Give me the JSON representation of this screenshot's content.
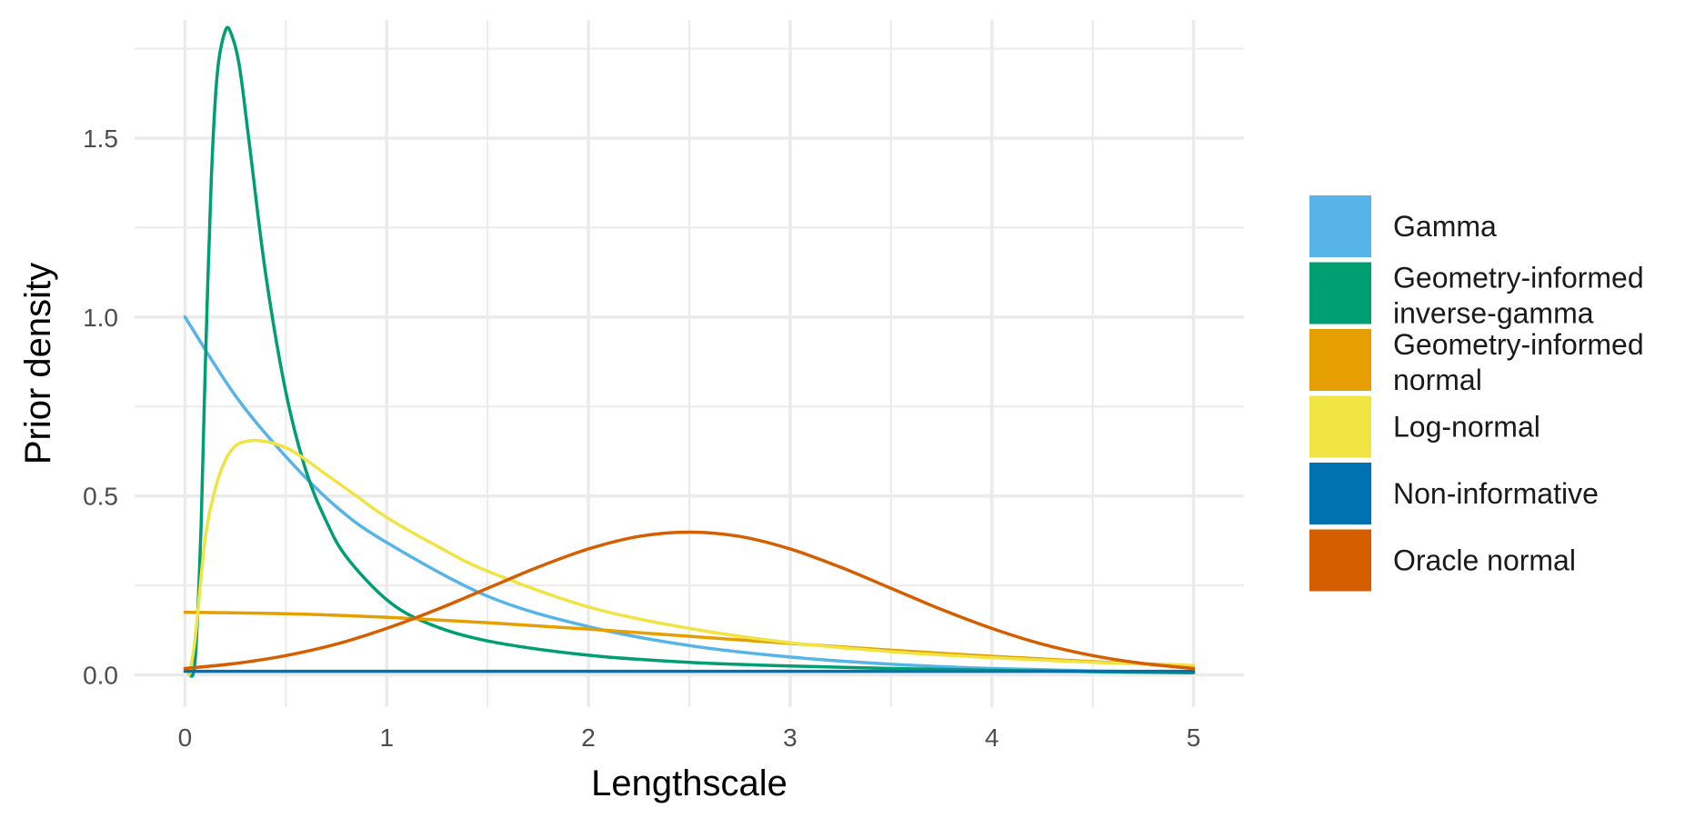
{
  "chart_data": {
    "type": "line",
    "xlabel": "Lengthscale",
    "ylabel": "Prior density",
    "xlim": [
      -0.25,
      5.25
    ],
    "ylim": [
      -0.09,
      1.83
    ],
    "xticks": [
      0,
      1,
      2,
      3,
      4,
      5
    ],
    "xtick_labels": [
      "0",
      "1",
      "2",
      "3",
      "4",
      "5"
    ],
    "yticks": [
      0.0,
      0.5,
      1.0,
      1.5
    ],
    "ytick_labels": [
      "0.0",
      "0.5",
      "1.0",
      "1.5"
    ],
    "grid": true,
    "legend_position": "right",
    "series": [
      {
        "name": "Gamma",
        "color": "#56B4E9",
        "x": [
          0,
          0.25,
          0.5,
          0.75,
          1,
          1.5,
          2,
          2.5,
          3,
          3.5,
          4,
          4.5,
          5
        ],
        "y": [
          1.0,
          0.78,
          0.61,
          0.47,
          0.37,
          0.22,
          0.135,
          0.082,
          0.05,
          0.03,
          0.018,
          0.011,
          0.007
        ]
      },
      {
        "name": "Geometry-informed\ninverse-gamma",
        "color": "#009E73",
        "x": [
          0.02,
          0.05,
          0.08,
          0.1,
          0.13,
          0.16,
          0.2,
          0.23,
          0.27,
          0.32,
          0.4,
          0.5,
          0.6,
          0.7,
          0.8,
          1.0,
          1.2,
          1.5,
          2.0,
          2.5,
          3.0,
          3.5,
          4.0,
          4.5,
          5.0
        ],
        "y": [
          0.0,
          0.04,
          0.42,
          0.85,
          1.38,
          1.68,
          1.8,
          1.79,
          1.7,
          1.48,
          1.12,
          0.79,
          0.57,
          0.43,
          0.33,
          0.21,
          0.145,
          0.095,
          0.055,
          0.035,
          0.025,
          0.018,
          0.013,
          0.009,
          0.006
        ]
      },
      {
        "name": "Geometry-informed\nnormal",
        "color": "#E69F00",
        "x": [
          0,
          0.5,
          1,
          1.5,
          2,
          2.5,
          3,
          3.5,
          4,
          4.5,
          5
        ],
        "y": [
          0.175,
          0.171,
          0.161,
          0.146,
          0.128,
          0.108,
          0.088,
          0.069,
          0.052,
          0.037,
          0.026
        ]
      },
      {
        "name": "Log-normal",
        "color": "#F0E442",
        "x": [
          0.02,
          0.05,
          0.1,
          0.15,
          0.2,
          0.25,
          0.3,
          0.36,
          0.45,
          0.55,
          0.7,
          0.85,
          1.0,
          1.25,
          1.5,
          2.0,
          2.5,
          3.0,
          3.5,
          4.0,
          4.5,
          5.0
        ],
        "y": [
          0.0,
          0.1,
          0.38,
          0.52,
          0.6,
          0.64,
          0.652,
          0.655,
          0.645,
          0.62,
          0.56,
          0.5,
          0.44,
          0.36,
          0.29,
          0.19,
          0.13,
          0.09,
          0.065,
          0.048,
          0.035,
          0.026
        ]
      },
      {
        "name": "Non-informative",
        "color": "#0072B2",
        "x": [
          0,
          5
        ],
        "y": [
          0.01,
          0.01
        ]
      },
      {
        "name": "Oracle normal",
        "color": "#D55E00",
        "x": [
          0,
          0.25,
          0.5,
          0.75,
          1,
          1.25,
          1.5,
          1.75,
          2,
          2.25,
          2.5,
          2.75,
          3,
          3.25,
          3.5,
          3.75,
          4,
          4.25,
          4.5,
          4.75,
          5
        ],
        "y": [
          0.018,
          0.032,
          0.054,
          0.086,
          0.13,
          0.183,
          0.242,
          0.301,
          0.352,
          0.387,
          0.399,
          0.387,
          0.352,
          0.301,
          0.242,
          0.183,
          0.13,
          0.086,
          0.054,
          0.032,
          0.018
        ]
      }
    ]
  }
}
